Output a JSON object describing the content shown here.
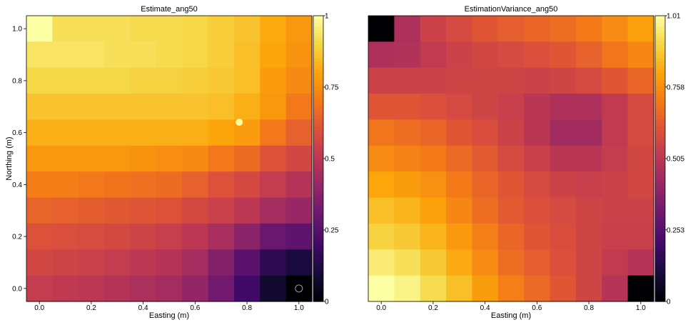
{
  "chart_data": [
    {
      "type": "heatmap",
      "title": "Estimate_ang50",
      "xlabel": "Easting (m)",
      "ylabel": "Northing (m)",
      "xlim": [
        -0.05,
        1.05
      ],
      "ylim": [
        -0.05,
        1.05
      ],
      "x_ticks": [
        "0.0",
        "0.2",
        "0.4",
        "0.6",
        "0.8",
        "1.0"
      ],
      "y_ticks": [
        "0.0",
        "0.2",
        "0.4",
        "0.6",
        "0.8",
        "1.0"
      ],
      "x": [
        0.0,
        0.1,
        0.2,
        0.3,
        0.4,
        0.5,
        0.6,
        0.7,
        0.8,
        0.9,
        1.0
      ],
      "y": [
        1.0,
        0.9,
        0.8,
        0.7,
        0.6,
        0.5,
        0.4,
        0.3,
        0.2,
        0.1,
        0.0
      ],
      "values": [
        [
          1.0,
          0.92,
          0.92,
          0.92,
          0.91,
          0.91,
          0.9,
          0.88,
          0.86,
          0.81,
          0.77
        ],
        [
          0.93,
          0.93,
          0.93,
          0.92,
          0.92,
          0.91,
          0.9,
          0.88,
          0.85,
          0.8,
          0.76
        ],
        [
          0.9,
          0.9,
          0.9,
          0.9,
          0.89,
          0.89,
          0.88,
          0.87,
          0.85,
          0.78,
          0.74
        ],
        [
          0.86,
          0.86,
          0.86,
          0.86,
          0.86,
          0.86,
          0.86,
          0.85,
          0.82,
          0.77,
          0.7
        ],
        [
          0.82,
          0.82,
          0.82,
          0.82,
          0.82,
          0.82,
          0.82,
          0.8,
          0.78,
          0.7,
          0.64
        ],
        [
          0.77,
          0.77,
          0.77,
          0.77,
          0.76,
          0.75,
          0.74,
          0.7,
          0.67,
          0.6,
          0.56
        ],
        [
          0.71,
          0.71,
          0.7,
          0.69,
          0.68,
          0.67,
          0.64,
          0.6,
          0.57,
          0.52,
          0.48
        ],
        [
          0.65,
          0.64,
          0.63,
          0.62,
          0.61,
          0.6,
          0.57,
          0.54,
          0.5,
          0.44,
          0.41
        ],
        [
          0.6,
          0.59,
          0.58,
          0.57,
          0.55,
          0.53,
          0.5,
          0.45,
          0.38,
          0.3,
          0.27
        ],
        [
          0.56,
          0.55,
          0.54,
          0.52,
          0.5,
          0.48,
          0.44,
          0.36,
          0.26,
          0.15,
          0.11
        ],
        [
          0.52,
          0.51,
          0.5,
          0.48,
          0.46,
          0.44,
          0.4,
          0.32,
          0.2,
          0.08,
          0.0
        ]
      ],
      "markers": [
        {
          "x": 0.77,
          "y": 0.64,
          "fill": "#fcfd9c",
          "stroke": "none"
        },
        {
          "x": 1.0,
          "y": 0.0,
          "fill": "none",
          "stroke": "#9a9a9a"
        }
      ],
      "colorbar": {
        "min": 0,
        "max": 1,
        "ticks": [
          0,
          0.25,
          0.5,
          0.75,
          1
        ],
        "tick_labels": [
          "0",
          "0.25",
          "0.5",
          "0.75",
          "1"
        ]
      },
      "colormap": "inferno"
    },
    {
      "type": "heatmap",
      "title": "EstimationVariance_ang50",
      "xlabel": "Easting (m)",
      "ylabel": "",
      "xlim": [
        -0.05,
        1.05
      ],
      "ylim": [
        -0.05,
        1.05
      ],
      "x_ticks": [
        "0.0",
        "0.2",
        "0.4",
        "0.6",
        "0.8",
        "1.0"
      ],
      "y_ticks": [],
      "x": [
        0.0,
        0.1,
        0.2,
        0.3,
        0.4,
        0.5,
        0.6,
        0.7,
        0.8,
        0.9,
        1.0
      ],
      "y": [
        1.0,
        0.9,
        0.8,
        0.7,
        0.6,
        0.5,
        0.4,
        0.3,
        0.2,
        0.1,
        0.0
      ],
      "values": [
        [
          0.0,
          0.47,
          0.55,
          0.58,
          0.62,
          0.64,
          0.66,
          0.68,
          0.71,
          0.75,
          0.8
        ],
        [
          0.47,
          0.48,
          0.52,
          0.55,
          0.57,
          0.58,
          0.6,
          0.62,
          0.65,
          0.7,
          0.74
        ],
        [
          0.55,
          0.55,
          0.55,
          0.56,
          0.56,
          0.56,
          0.55,
          0.56,
          0.58,
          0.62,
          0.66
        ],
        [
          0.62,
          0.62,
          0.6,
          0.58,
          0.56,
          0.54,
          0.5,
          0.47,
          0.47,
          0.52,
          0.58
        ],
        [
          0.7,
          0.68,
          0.66,
          0.62,
          0.59,
          0.55,
          0.5,
          0.44,
          0.44,
          0.52,
          0.58
        ],
        [
          0.75,
          0.73,
          0.71,
          0.67,
          0.63,
          0.58,
          0.54,
          0.5,
          0.5,
          0.53,
          0.57
        ],
        [
          0.81,
          0.79,
          0.76,
          0.71,
          0.66,
          0.62,
          0.58,
          0.55,
          0.54,
          0.55,
          0.57
        ],
        [
          0.86,
          0.84,
          0.8,
          0.74,
          0.68,
          0.63,
          0.6,
          0.58,
          0.56,
          0.55,
          0.55
        ],
        [
          0.9,
          0.88,
          0.84,
          0.78,
          0.72,
          0.66,
          0.62,
          0.59,
          0.56,
          0.54,
          0.54
        ],
        [
          0.96,
          0.93,
          0.88,
          0.82,
          0.75,
          0.68,
          0.64,
          0.6,
          0.56,
          0.52,
          0.49
        ],
        [
          1.01,
          0.98,
          0.92,
          0.86,
          0.79,
          0.72,
          0.67,
          0.62,
          0.56,
          0.49,
          0.0
        ]
      ],
      "colorbar": {
        "min": 0,
        "max": 1.01,
        "ticks": [
          0,
          0.253,
          0.505,
          0.758,
          1.01
        ],
        "tick_labels": [
          "0",
          "0.253",
          "0.505",
          "0.758",
          "1.01"
        ]
      },
      "colormap": "inferno"
    }
  ]
}
